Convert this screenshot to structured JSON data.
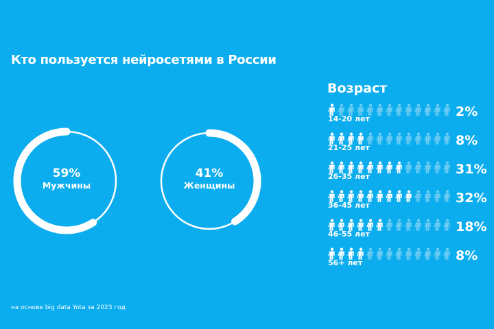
{
  "title": "Кто пользуется нейросетями в России",
  "footer": "на основе big data Yota за 2023 год",
  "colors": {
    "background": "#0badef",
    "foreground": "#ffffff",
    "inactive_icon": "#6fcdf3"
  },
  "chart_data": [
    {
      "type": "pie",
      "style": "ring",
      "categories": [
        "Мужчины",
        "Женщины"
      ],
      "values": [
        59,
        41
      ],
      "labels": [
        "59%",
        "41%"
      ]
    },
    {
      "type": "pictogram",
      "title": "Возраст",
      "icon": "person-icon",
      "icons_per_row": 13,
      "categories": [
        "14-20 лет",
        "21-25 лет",
        "26-35 лет",
        "36-45 лет",
        "46-55 лет",
        "56+ лет"
      ],
      "values": [
        2,
        8,
        31,
        32,
        18,
        8
      ],
      "labels": [
        "2%",
        "8%",
        "31%",
        "32%",
        "18%",
        "8%"
      ],
      "filled_icons": [
        1,
        4,
        8,
        9,
        6,
        4
      ]
    }
  ]
}
